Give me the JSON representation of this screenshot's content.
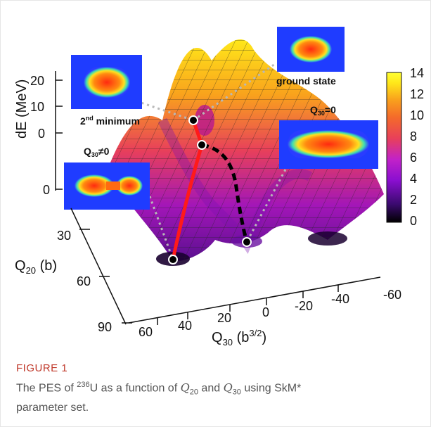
{
  "figure": {
    "label": "FIGURE 1",
    "caption": {
      "pre": "The PES of ",
      "isotope_mass": "236",
      "element": "U as a function of ",
      "q20": "Q",
      "q20_sub": "20",
      "and": " and ",
      "q30": "Q",
      "q30_sub": "30",
      "post": " using SkM*",
      "line2": "parameter set."
    }
  },
  "plot": {
    "z_axis_label": "dE (MeV)",
    "z_ticks": [
      "20",
      "10",
      "0"
    ],
    "z_floor_tick": "0",
    "q20_axis_label_main": "Q",
    "q20_axis_label_sub": "20",
    "q20_axis_label_unit": " (b)",
    "q20_ticks": [
      "30",
      "60",
      "90"
    ],
    "q30_axis_label_main": "Q",
    "q30_axis_label_sub": "30",
    "q30_axis_label_unit": " (b",
    "q30_axis_label_sup": "3/2",
    "q30_axis_label_close": ")",
    "q30_ticks": [
      "60",
      "40",
      "20",
      "0",
      "-20",
      "-40",
      "-60"
    ],
    "colorbar_ticks": [
      "14",
      "12",
      "10",
      "8",
      "6",
      "4",
      "2",
      "0"
    ],
    "colorbar_colors": [
      "#000000",
      "#3a0a6e",
      "#8a0fd0",
      "#c222c8",
      "#e8405a",
      "#f46a2a",
      "#f9a21c",
      "#ffe81a",
      "#ffff33"
    ],
    "annotations": {
      "second_minimum_pre": "2",
      "second_minimum_sup": "nd",
      "second_minimum_post": " minimum",
      "ground_state": "ground state",
      "q30_zero": "Q30=0",
      "q30_zero_main": "Q",
      "q30_zero_sub": "30",
      "q30_zero_rel": "=0",
      "q30_nonzero_main": "Q",
      "q30_nonzero_sub": "30",
      "q30_nonzero_rel": "≠0"
    },
    "surface_colors": [
      "#ffff33",
      "#ffd21a",
      "#f59a1a",
      "#ea5a32",
      "#d02a6a",
      "#a316b8",
      "#6a0fa0",
      "#1a0030"
    ],
    "path_colors": {
      "asymmetric": "#ff1a1a",
      "symmetric": "#000000"
    }
  }
}
